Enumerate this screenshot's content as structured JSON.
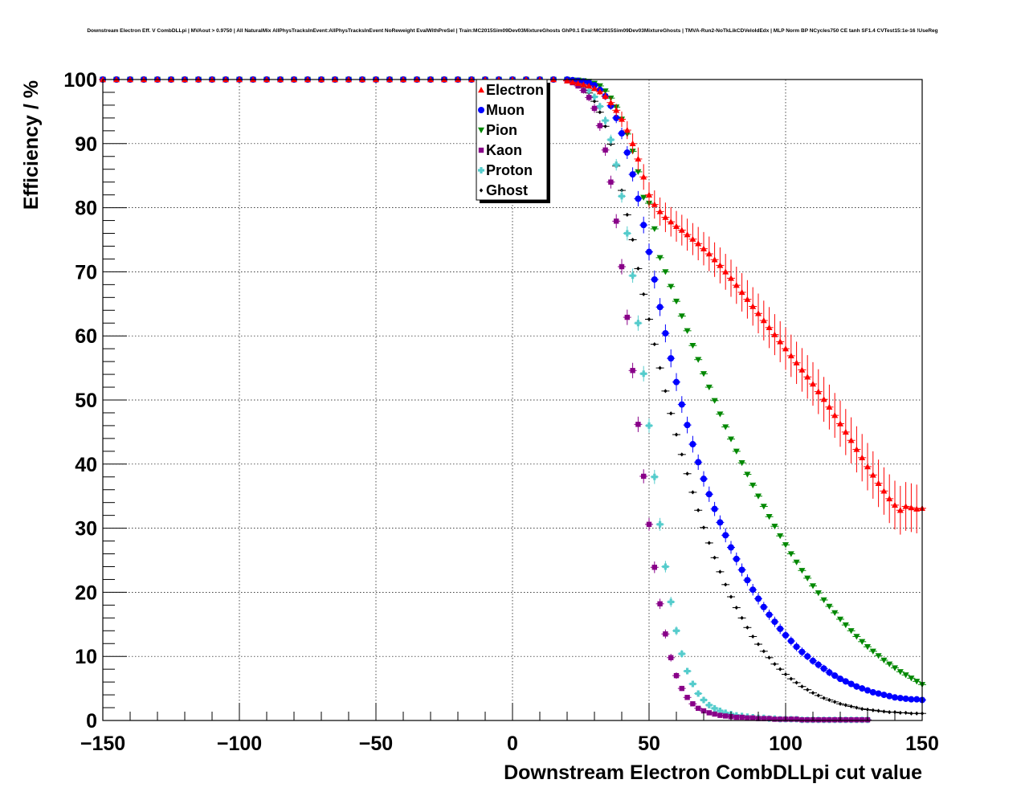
{
  "chart_data": {
    "type": "scatter",
    "title": "Downstream Electron Eff. V CombDLLpi | MVAout > 0.9750 | All NaturalMix AllPhysTracksInEvent:AllPhysTracksInEvent NoReweight EvalWithPreSel | Train:MC2015Sim09Dev03MixtureGhosts GhP0.1 Eval:MC2015Sim09Dev03MixtureGhosts | TMVA-Run2-NoTkLikCDVeloIdEdx | MLP Norm BP NCycles750 CE tanh SF1.4 CVTest15:1e-16 !UseReg",
    "xlabel": "Downstream Electron CombDLLpi cut value",
    "ylabel": "Efficiency / %",
    "xlim": [
      -150,
      150
    ],
    "ylim": [
      0,
      100
    ],
    "xticks": [
      -150,
      -100,
      -50,
      0,
      50,
      100,
      150
    ],
    "yticks": [
      0,
      10,
      20,
      30,
      40,
      50,
      60,
      70,
      80,
      90,
      100
    ],
    "grid": true,
    "legend_position": "top-center",
    "x_start": -150,
    "x_step": 5,
    "series": [
      {
        "name": "Electron",
        "color": "#ff0000",
        "marker": "triangle-up",
        "x": [
          20,
          22,
          24,
          26,
          28,
          30,
          32,
          34,
          36,
          38,
          40,
          42,
          44,
          46,
          48,
          50,
          52,
          54,
          56,
          58,
          60,
          62,
          64,
          66,
          68,
          70,
          72,
          74,
          76,
          78,
          80,
          82,
          84,
          86,
          88,
          90,
          92,
          94,
          96,
          98,
          100,
          102,
          104,
          106,
          108,
          110,
          112,
          114,
          116,
          118,
          120,
          122,
          124,
          126,
          128,
          130,
          132,
          134,
          136,
          138,
          140,
          142,
          144,
          146,
          148,
          150
        ],
        "y": [
          99.8,
          99.6,
          99.4,
          99.2,
          99.0,
          98.6,
          98.1,
          97.4,
          96.4,
          95.2,
          93.8,
          92.1,
          90.0,
          87.6,
          84.8,
          82.0,
          80.5,
          79.4,
          78.5,
          77.8,
          77.1,
          76.5,
          75.8,
          75.1,
          74.4,
          73.6,
          72.8,
          71.9,
          71.0,
          70.0,
          69.0,
          67.9,
          66.8,
          65.7,
          64.6,
          63.5,
          62.4,
          61.3,
          60.2,
          59.1,
          58.0,
          56.9,
          55.8,
          54.7,
          53.6,
          52.5,
          51.3,
          50.1,
          48.9,
          47.6,
          46.3,
          45.0,
          43.7,
          42.3,
          41.0,
          39.6,
          38.3,
          37.0,
          35.8,
          34.6,
          33.6,
          32.8,
          33.4,
          33.2,
          33.0,
          33.1
        ],
        "yerr": [
          0.2,
          0.2,
          0.3,
          0.3,
          0.3,
          0.4,
          0.5,
          0.6,
          0.8,
          1.0,
          1.2,
          1.4,
          1.6,
          1.8,
          2.0,
          2.0,
          2.2,
          2.2,
          2.3,
          2.3,
          2.4,
          2.4,
          2.5,
          2.5,
          2.6,
          2.6,
          2.7,
          2.7,
          2.8,
          2.8,
          2.9,
          2.9,
          3.0,
          3.0,
          3.0,
          3.1,
          3.1,
          3.2,
          3.2,
          3.2,
          3.3,
          3.3,
          3.3,
          3.4,
          3.4,
          3.4,
          3.5,
          3.5,
          3.5,
          3.5,
          3.6,
          3.6,
          3.6,
          3.6,
          3.7,
          3.7,
          3.7,
          3.7,
          3.7,
          3.8,
          3.8,
          3.8,
          3.8,
          3.8,
          3.8,
          3.8
        ]
      },
      {
        "name": "Muon",
        "color": "#0000ff",
        "marker": "circle",
        "x": [
          20,
          22,
          24,
          26,
          28,
          30,
          32,
          34,
          36,
          38,
          40,
          42,
          44,
          46,
          48,
          50,
          52,
          54,
          56,
          58,
          60,
          62,
          64,
          66,
          68,
          70,
          72,
          74,
          76,
          78,
          80,
          82,
          84,
          86,
          88,
          90,
          92,
          94,
          96,
          98,
          100,
          102,
          104,
          106,
          108,
          110,
          112,
          114,
          116,
          118,
          120,
          122,
          124,
          126,
          128,
          130,
          132,
          134,
          136,
          138,
          140,
          142,
          144,
          146,
          148,
          150
        ],
        "y": [
          100.0,
          99.9,
          99.8,
          99.7,
          99.5,
          99.1,
          98.4,
          97.4,
          95.9,
          94.0,
          91.6,
          88.6,
          85.2,
          81.4,
          77.3,
          73.1,
          68.8,
          64.5,
          60.4,
          56.5,
          52.8,
          49.3,
          46.1,
          43.1,
          40.3,
          37.7,
          35.3,
          33.0,
          30.9,
          28.9,
          27.0,
          25.2,
          23.5,
          21.9,
          20.4,
          19.0,
          17.7,
          16.5,
          15.4,
          14.3,
          13.3,
          12.4,
          11.5,
          10.7,
          10.0,
          9.3,
          8.7,
          8.1,
          7.5,
          7.0,
          6.5,
          6.1,
          5.7,
          5.3,
          5.0,
          4.7,
          4.4,
          4.2,
          4.0,
          3.8,
          3.6,
          3.5,
          3.4,
          3.3,
          3.3,
          3.2
        ],
        "yerr": [
          0.1,
          0.1,
          0.1,
          0.2,
          0.2,
          0.3,
          0.4,
          0.5,
          0.6,
          0.8,
          0.9,
          1.0,
          1.1,
          1.2,
          1.3,
          1.3,
          1.4,
          1.4,
          1.4,
          1.4,
          1.4,
          1.3,
          1.3,
          1.3,
          1.2,
          1.2,
          1.2,
          1.1,
          1.1,
          1.1,
          1.0,
          1.0,
          1.0,
          0.9,
          0.9,
          0.9,
          0.8,
          0.8,
          0.8,
          0.8,
          0.7,
          0.7,
          0.7,
          0.7,
          0.6,
          0.6,
          0.6,
          0.6,
          0.6,
          0.5,
          0.5,
          0.5,
          0.5,
          0.5,
          0.5,
          0.5,
          0.4,
          0.4,
          0.4,
          0.4,
          0.4,
          0.4,
          0.4,
          0.4,
          0.4,
          0.4
        ]
      },
      {
        "name": "Pion",
        "color": "#008800",
        "marker": "triangle-down",
        "x": [
          20,
          22,
          24,
          26,
          28,
          30,
          32,
          34,
          36,
          38,
          40,
          42,
          44,
          46,
          48,
          50,
          52,
          54,
          56,
          58,
          60,
          62,
          64,
          66,
          68,
          70,
          72,
          74,
          76,
          78,
          80,
          82,
          84,
          86,
          88,
          90,
          92,
          94,
          96,
          98,
          100,
          102,
          104,
          106,
          108,
          110,
          112,
          114,
          116,
          118,
          120,
          122,
          124,
          126,
          128,
          130,
          132,
          134,
          136,
          138,
          140,
          142,
          144,
          146,
          148,
          150
        ],
        "y": [
          100.0,
          99.9,
          99.9,
          99.8,
          99.7,
          99.4,
          99.0,
          98.2,
          97.1,
          95.7,
          93.8,
          91.5,
          88.8,
          85.6,
          81.6,
          80.7,
          76.7,
          72.2,
          70.0,
          67.7,
          65.4,
          63.1,
          60.8,
          58.5,
          56.3,
          54.1,
          52.0,
          49.9,
          47.8,
          45.8,
          43.9,
          42.0,
          40.2,
          38.4,
          36.7,
          35.0,
          33.4,
          31.8,
          30.3,
          28.8,
          27.4,
          26.0,
          24.7,
          23.4,
          22.2,
          21.0,
          19.9,
          18.8,
          17.8,
          16.8,
          15.8,
          14.9,
          14.0,
          13.1,
          12.3,
          11.5,
          10.8,
          10.1,
          9.4,
          8.8,
          8.2,
          7.6,
          7.1,
          6.6,
          6.1,
          5.6
        ],
        "yerr": [
          0.1,
          0.1,
          0.1,
          0.1,
          0.1,
          0.1,
          0.1,
          0.2,
          0.2,
          0.2,
          0.2,
          0.2,
          0.2,
          0.3,
          0.3,
          0.3,
          0.3,
          0.3,
          0.3,
          0.3,
          0.3,
          0.3,
          0.3,
          0.3,
          0.3,
          0.3,
          0.3,
          0.3,
          0.3,
          0.3,
          0.3,
          0.3,
          0.3,
          0.3,
          0.3,
          0.3,
          0.3,
          0.3,
          0.3,
          0.3,
          0.3,
          0.3,
          0.3,
          0.3,
          0.3,
          0.3,
          0.3,
          0.3,
          0.3,
          0.3,
          0.3,
          0.3,
          0.3,
          0.3,
          0.3,
          0.3,
          0.3,
          0.3,
          0.3,
          0.3,
          0.3,
          0.3,
          0.3,
          0.3,
          0.3,
          0.3
        ]
      },
      {
        "name": "Kaon",
        "color": "#880088",
        "marker": "square",
        "x": [
          20,
          22,
          24,
          26,
          28,
          30,
          32,
          34,
          36,
          38,
          40,
          42,
          44,
          46,
          48,
          50,
          52,
          54,
          56,
          58,
          60,
          62,
          64,
          66,
          68,
          70,
          72,
          74,
          76,
          78,
          80,
          82,
          84,
          86,
          88,
          90,
          92,
          94,
          96,
          98,
          100,
          102,
          104,
          106,
          108,
          110,
          112,
          114,
          116,
          118,
          120,
          122,
          124,
          126,
          128,
          130
        ],
        "y": [
          99.8,
          99.5,
          99.0,
          98.3,
          97.2,
          95.5,
          92.8,
          89.0,
          84.0,
          77.9,
          70.8,
          62.9,
          54.6,
          46.2,
          38.1,
          30.6,
          23.9,
          18.2,
          13.5,
          9.8,
          7.0,
          5.0,
          3.6,
          2.6,
          1.9,
          1.5,
          1.2,
          1.0,
          0.8,
          0.7,
          0.6,
          0.5,
          0.5,
          0.4,
          0.4,
          0.3,
          0.3,
          0.3,
          0.2,
          0.2,
          0.2,
          0.2,
          0.2,
          0.1,
          0.1,
          0.1,
          0.1,
          0.1,
          0.1,
          0.1,
          0.1,
          0.1,
          0.1,
          0.1,
          0.1,
          0.1
        ],
        "yerr": [
          0.2,
          0.3,
          0.4,
          0.5,
          0.6,
          0.7,
          0.8,
          0.9,
          1.0,
          1.1,
          1.2,
          1.2,
          1.2,
          1.2,
          1.1,
          1.0,
          0.9,
          0.8,
          0.7,
          0.6,
          0.5,
          0.4,
          0.3,
          0.3,
          0.2,
          0.2,
          0.2,
          0.1,
          0.1,
          0.1,
          0.1,
          0.1,
          0.1,
          0.1,
          0.1,
          0.1,
          0.1,
          0.1,
          0.1,
          0.1,
          0.1,
          0.1,
          0.1,
          0.1,
          0.1,
          0.1,
          0.1,
          0.1,
          0.1,
          0.1,
          0.1,
          0.1,
          0.1,
          0.1,
          0.1,
          0.1
        ]
      },
      {
        "name": "Proton",
        "color": "#55cccc",
        "marker": "cross",
        "x": [
          20,
          22,
          24,
          26,
          28,
          30,
          32,
          34,
          36,
          38,
          40,
          42,
          44,
          46,
          48,
          50,
          52,
          54,
          56,
          58,
          60,
          62,
          64,
          66,
          68,
          70,
          72,
          74,
          76,
          78,
          80,
          82,
          84,
          86,
          88,
          90,
          92,
          94,
          96,
          98,
          100,
          102,
          104,
          106,
          108,
          110,
          112,
          114,
          116,
          118,
          120,
          122,
          124,
          126,
          128,
          130
        ],
        "y": [
          99.9,
          99.7,
          99.4,
          99.0,
          98.3,
          97.3,
          95.8,
          93.6,
          90.6,
          86.7,
          81.8,
          76.0,
          69.4,
          62.0,
          54.1,
          46.0,
          38.0,
          30.6,
          24.0,
          18.5,
          14.0,
          10.4,
          7.7,
          5.7,
          4.2,
          3.2,
          2.4,
          1.9,
          1.5,
          1.2,
          1.0,
          0.8,
          0.7,
          0.6,
          0.5,
          0.4,
          0.4,
          0.3,
          0.3,
          0.2,
          0.2,
          0.2,
          0.2,
          0.1,
          0.1,
          0.1,
          0.1,
          0.1,
          0.1,
          0.1,
          0.1,
          0.1,
          0.1,
          0.1,
          0.1,
          0.1
        ],
        "yerr": [
          0.1,
          0.2,
          0.2,
          0.3,
          0.4,
          0.5,
          0.6,
          0.7,
          0.8,
          0.9,
          1.0,
          1.1,
          1.1,
          1.2,
          1.2,
          1.1,
          1.1,
          1.0,
          0.9,
          0.8,
          0.7,
          0.6,
          0.5,
          0.4,
          0.3,
          0.3,
          0.2,
          0.2,
          0.2,
          0.1,
          0.1,
          0.1,
          0.1,
          0.1,
          0.1,
          0.1,
          0.1,
          0.1,
          0.1,
          0.1,
          0.1,
          0.1,
          0.1,
          0.1,
          0.1,
          0.1,
          0.1,
          0.1,
          0.1,
          0.1,
          0.1,
          0.1,
          0.1,
          0.1,
          0.1,
          0.1
        ]
      },
      {
        "name": "Ghost",
        "color": "#000000",
        "marker": "diamond-small",
        "x": [
          20,
          22,
          24,
          26,
          28,
          30,
          32,
          34,
          36,
          38,
          40,
          42,
          44,
          46,
          48,
          50,
          52,
          54,
          56,
          58,
          60,
          62,
          64,
          66,
          68,
          70,
          72,
          74,
          76,
          78,
          80,
          82,
          84,
          86,
          88,
          90,
          92,
          94,
          96,
          98,
          100,
          102,
          104,
          106,
          108,
          110,
          112,
          114,
          116,
          118,
          120,
          122,
          124,
          126,
          128,
          130,
          132,
          134,
          136,
          138,
          140,
          142,
          144,
          146,
          148,
          150
        ],
        "y": [
          99.9,
          99.7,
          99.3,
          98.8,
          97.9,
          96.6,
          94.9,
          92.7,
          89.9,
          86.5,
          82.7,
          78.9,
          75.0,
          70.5,
          66.5,
          62.6,
          58.7,
          55.0,
          51.4,
          47.9,
          44.6,
          41.5,
          38.5,
          35.6,
          32.8,
          30.1,
          27.7,
          25.4,
          23.2,
          21.2,
          19.3,
          17.6,
          16.0,
          14.5,
          13.1,
          11.9,
          10.8,
          9.8,
          8.8,
          8.0,
          7.2,
          6.5,
          5.9,
          5.3,
          4.8,
          4.3,
          3.9,
          3.5,
          3.2,
          2.9,
          2.6,
          2.4,
          2.2,
          2.0,
          1.8,
          1.7,
          1.6,
          1.5,
          1.4,
          1.3,
          1.3,
          1.2,
          1.2,
          1.1,
          1.1,
          1.1
        ],
        "yerr": [
          0.1,
          0.1,
          0.1,
          0.1,
          0.1,
          0.2,
          0.2,
          0.2,
          0.2,
          0.2,
          0.2,
          0.2,
          0.2,
          0.2,
          0.2,
          0.2,
          0.2,
          0.2,
          0.2,
          0.2,
          0.2,
          0.2,
          0.2,
          0.2,
          0.2,
          0.2,
          0.2,
          0.2,
          0.2,
          0.2,
          0.2,
          0.2,
          0.2,
          0.2,
          0.1,
          0.1,
          0.1,
          0.1,
          0.1,
          0.1,
          0.1,
          0.1,
          0.1,
          0.1,
          0.1,
          0.1,
          0.1,
          0.1,
          0.1,
          0.1,
          0.1,
          0.1,
          0.1,
          0.1,
          0.1,
          0.1,
          0.1,
          0.1,
          0.1,
          0.1,
          0.1,
          0.1,
          0.1,
          0.1,
          0.1,
          0.1
        ]
      }
    ]
  }
}
